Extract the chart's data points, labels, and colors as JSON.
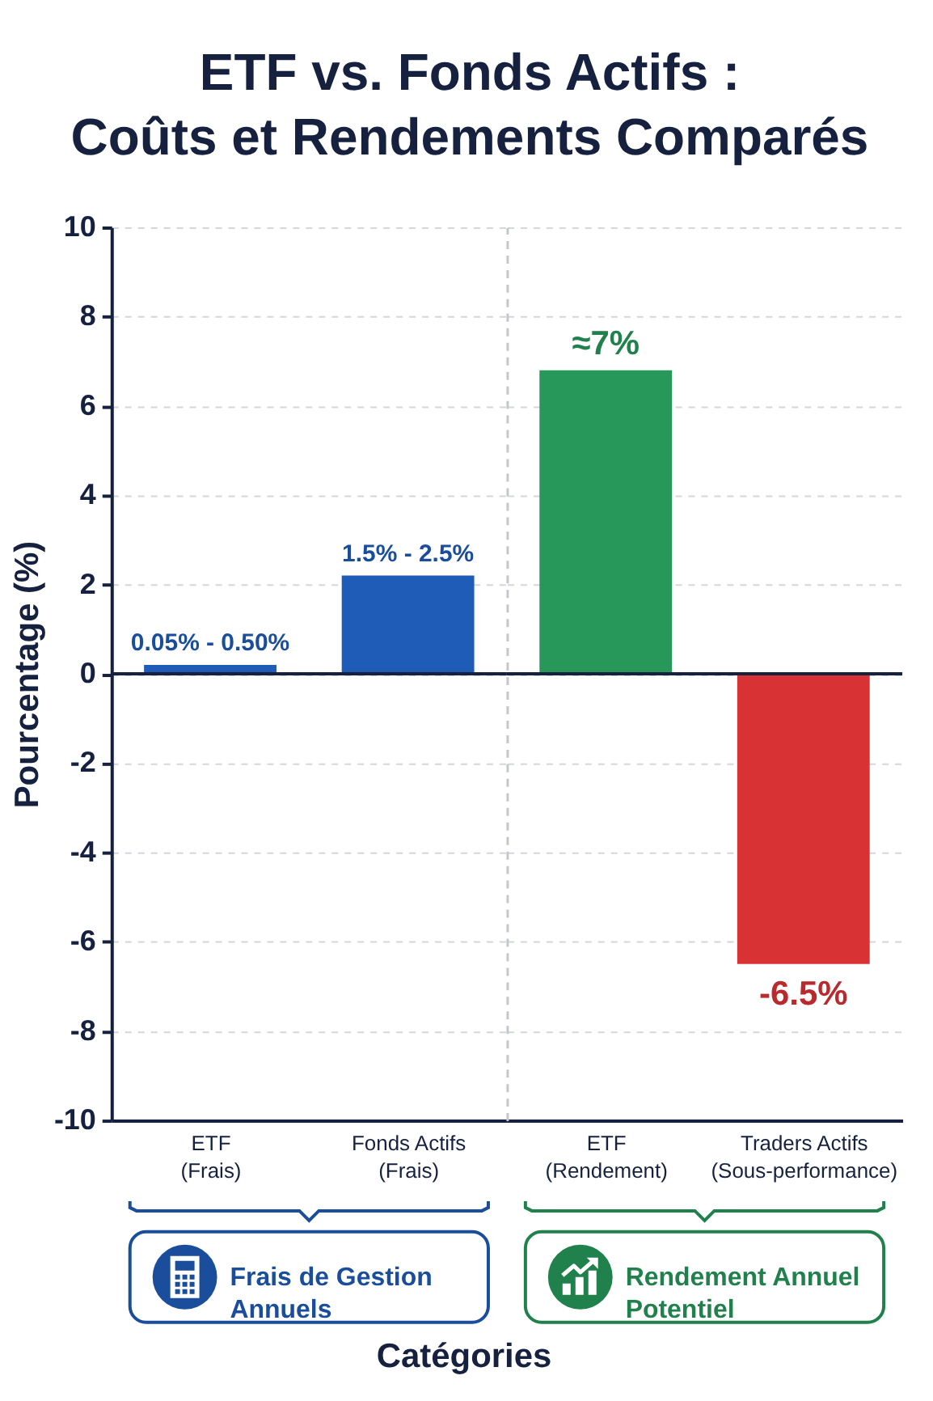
{
  "chart_data": [
    {
      "type": "bar",
      "title": "ETF vs. Fonds Actifs :\nCoûts et Rendements Comparés",
      "xlabel": "Catégories",
      "ylabel": "Pourcentage (%)",
      "categories": [
        "ETF (Frais)",
        "Fonds Actifs (Frais)"
      ],
      "values": [
        0.2,
        2.2
      ],
      "colors": [
        "#1f5cb8",
        "#1f5cb8"
      ],
      "ylim": [
        -10,
        10
      ],
      "yticks": [
        -10,
        -8,
        -6,
        -4,
        -2,
        0,
        2,
        4,
        6,
        8,
        10
      ],
      "grid": "y",
      "ref_lines": [
        {
          "axis": "y",
          "value": 0,
          "color": "#15213f"
        }
      ],
      "annotations": [
        {
          "text": "0.05% - 0.50%",
          "x": "ETF (Frais)",
          "y": 0.2
        },
        {
          "text": "1.5% - 2.5%",
          "x": "Fonds Actifs (Frais)",
          "y": 2.2
        },
        "Frais de Gestion Annuels"
      ]
    },
    {
      "type": "bar",
      "categories": [
        "ETF (Rendement)",
        "Traders Actifs (Sous-performance)"
      ],
      "values": [
        6.8,
        -6.5
      ],
      "colors": [
        "#27985a",
        "#d93235"
      ],
      "value_labels": [
        "≈7%",
        "-6.5%"
      ],
      "ylim": [
        -10,
        10
      ],
      "yticks": [
        -10,
        -8,
        -6,
        -4,
        -2,
        0,
        2,
        4,
        6,
        8,
        10
      ],
      "grid": "y",
      "tick_labels": "x",
      "ref_lines": [
        {
          "axis": "y",
          "value": 0,
          "color": "#15213f"
        }
      ],
      "annotations": [
        "Rendement Annuel Potentiel"
      ]
    }
  ]
}
